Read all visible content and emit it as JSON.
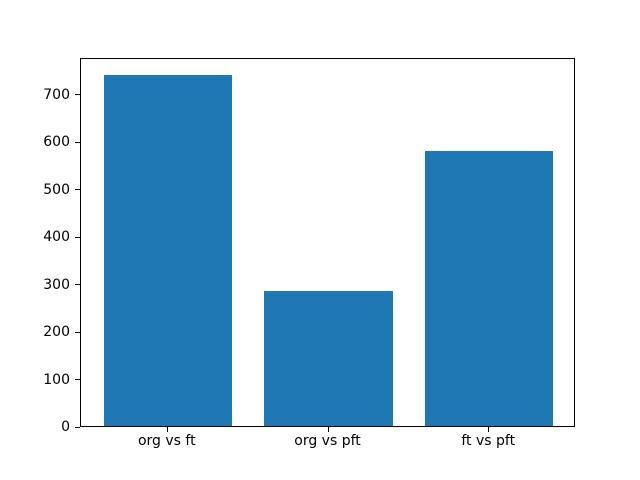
{
  "chart_data": {
    "type": "bar",
    "title": "",
    "xlabel": "",
    "ylabel": "",
    "categories": [
      "org vs ft",
      "org vs pft",
      "ft vs pft"
    ],
    "values": [
      740,
      285,
      580
    ],
    "yticks": [
      0,
      100,
      200,
      300,
      400,
      500,
      600,
      700
    ],
    "ylim": [
      0,
      777
    ],
    "bar_color": "#1f77b4",
    "spine_color": "#000000",
    "background_color": "#ffffff",
    "bar_width_fraction": 0.8,
    "grid": false,
    "legend": false
  }
}
